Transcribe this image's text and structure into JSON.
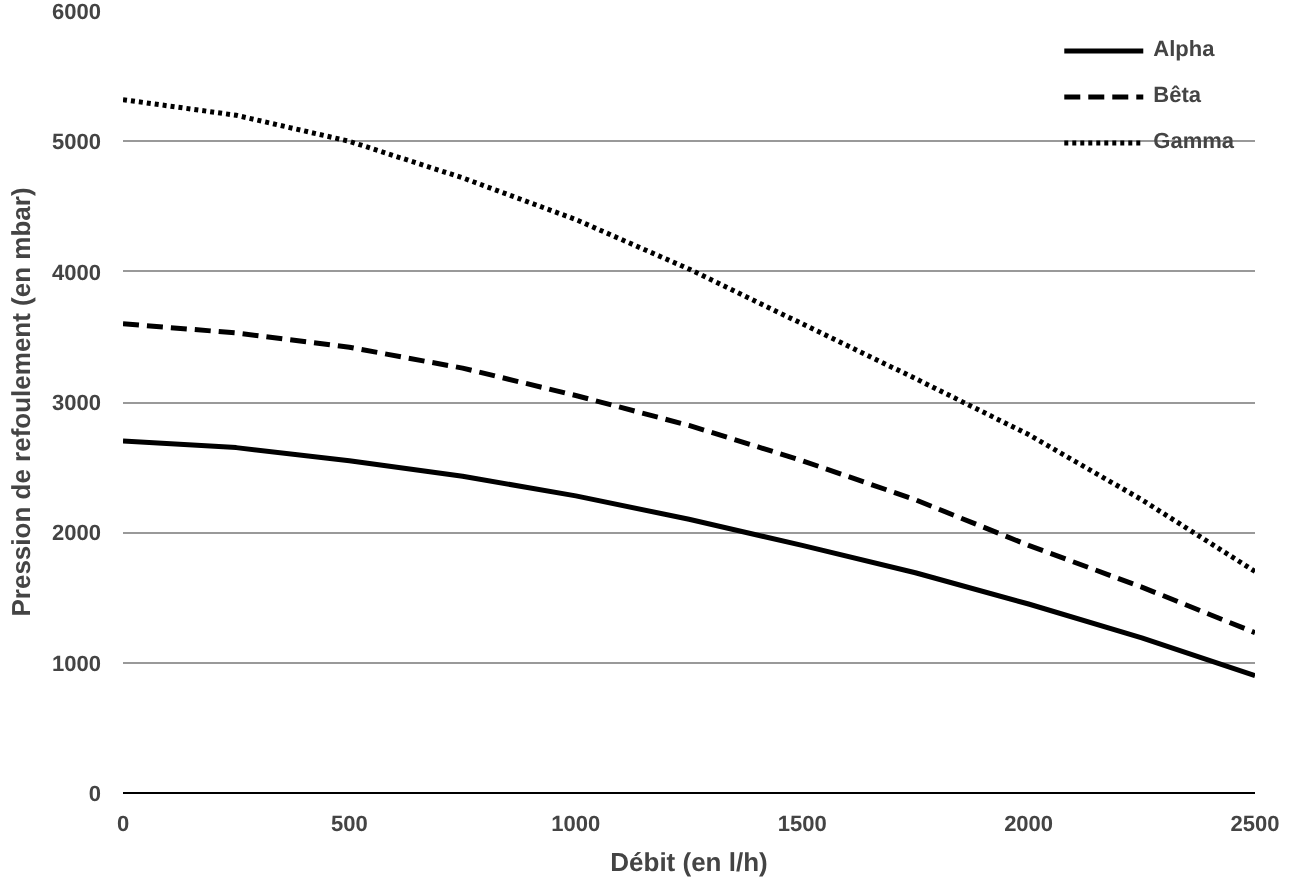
{
  "chart_data": {
    "type": "line",
    "xlabel": "Débit (en l/h)",
    "ylabel": "Pression de refoulement (en mbar)",
    "x": [
      0,
      250,
      500,
      750,
      1000,
      1250,
      1500,
      1750,
      2000,
      2250,
      2500
    ],
    "series": [
      {
        "name": "Alpha",
        "color": "#000000",
        "line_style": "solid",
        "values": [
          2700,
          2650,
          2550,
          2430,
          2280,
          2100,
          1900,
          1690,
          1450,
          1190,
          900
        ]
      },
      {
        "name": "Bêta",
        "color": "#000000",
        "line_style": "dashed",
        "values": [
          3600,
          3530,
          3420,
          3260,
          3050,
          2820,
          2550,
          2250,
          1900,
          1580,
          1230
        ]
      },
      {
        "name": "Gamma",
        "color": "#000000",
        "line_style": "dotted",
        "values": [
          5320,
          5200,
          5000,
          4720,
          4400,
          4020,
          3600,
          3180,
          2750,
          2250,
          1700
        ]
      }
    ],
    "xlim": [
      0,
      2500
    ],
    "ylim": [
      0,
      6000
    ],
    "xticks": [
      0,
      500,
      1000,
      1500,
      2000,
      2500
    ],
    "yticks": [
      0,
      1000,
      2000,
      3000,
      4000,
      5000,
      6000
    ],
    "grid": "y",
    "legend": "top right"
  }
}
